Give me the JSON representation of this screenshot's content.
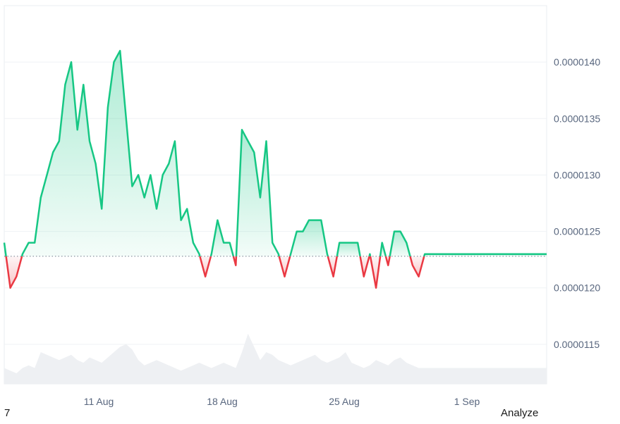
{
  "chart_data": {
    "type": "area",
    "x_ticks": [
      "11 Aug",
      "18 Aug",
      "25 Aug",
      "1 Sep"
    ],
    "y_ticks": [
      "0.0000140",
      "0.0000135",
      "0.0000130",
      "0.0000125",
      "0.0000120",
      "0.0000115"
    ],
    "ylim": [
      1.115e-05,
      1.45e-05
    ],
    "baseline": 1.228e-05,
    "grid": true,
    "colors": {
      "above": "#16c784",
      "below": "#ea3943",
      "above_fill": "#16c784",
      "below_fill": "#ea3943",
      "volume": "#eef0f3",
      "baseline": "#707a8a"
    },
    "x": [
      0,
      0.5,
      1,
      1.5,
      2,
      2.5,
      3,
      3.5,
      4,
      4.5,
      5,
      5.5,
      6,
      6.5,
      7,
      7.5,
      8,
      8.5,
      9,
      9.5,
      10,
      10.5,
      11,
      11.5,
      12,
      12.5,
      13,
      13.5,
      14,
      14.5,
      15,
      15.5,
      16,
      16.5,
      17,
      17.5,
      18,
      18.5,
      19,
      19.5,
      20,
      20.5,
      21,
      21.5,
      22,
      22.5,
      23,
      23.5,
      24,
      24.5,
      25,
      25.5,
      26,
      26.5,
      27,
      27.5,
      28,
      28.5,
      29,
      29.5,
      30,
      30.5,
      31,
      31.5,
      32,
      32.5,
      33,
      33.5,
      34,
      34.5,
      35,
      35.5,
      36,
      36.5,
      37,
      37.5,
      38,
      38.5,
      39,
      39.5,
      40,
      40.5,
      41,
      41.5,
      42,
      42.5,
      43,
      43.5,
      44,
      44.5
    ],
    "price": [
      1.24e-05,
      1.2e-05,
      1.21e-05,
      1.23e-05,
      1.24e-05,
      1.24e-05,
      1.28e-05,
      1.3e-05,
      1.32e-05,
      1.33e-05,
      1.38e-05,
      1.4e-05,
      1.34e-05,
      1.38e-05,
      1.33e-05,
      1.31e-05,
      1.27e-05,
      1.36e-05,
      1.4e-05,
      1.41e-05,
      1.35e-05,
      1.29e-05,
      1.3e-05,
      1.28e-05,
      1.3e-05,
      1.27e-05,
      1.3e-05,
      1.31e-05,
      1.33e-05,
      1.26e-05,
      1.27e-05,
      1.24e-05,
      1.23e-05,
      1.21e-05,
      1.23e-05,
      1.26e-05,
      1.24e-05,
      1.24e-05,
      1.22e-05,
      1.34e-05,
      1.33e-05,
      1.32e-05,
      1.28e-05,
      1.33e-05,
      1.24e-05,
      1.23e-05,
      1.21e-05,
      1.23e-05,
      1.25e-05,
      1.25e-05,
      1.26e-05,
      1.26e-05,
      1.26e-05,
      1.23e-05,
      1.21e-05,
      1.24e-05,
      1.24e-05,
      1.24e-05,
      1.24e-05,
      1.21e-05,
      1.23e-05,
      1.2e-05,
      1.24e-05,
      1.22e-05,
      1.25e-05,
      1.25e-05,
      1.24e-05,
      1.22e-05,
      1.21e-05,
      1.23e-05,
      1.23e-05,
      1.23e-05,
      1.23e-05,
      1.23e-05,
      1.23e-05,
      1.23e-05,
      1.23e-05,
      1.23e-05,
      1.23e-05,
      1.23e-05,
      1.23e-05,
      1.23e-05,
      1.23e-05,
      1.23e-05,
      1.23e-05,
      1.23e-05,
      1.23e-05,
      1.23e-05,
      1.23e-05,
      1.23e-05
    ],
    "volume": [
      0.3,
      0.25,
      0.2,
      0.3,
      0.35,
      0.3,
      0.6,
      0.55,
      0.5,
      0.45,
      0.5,
      0.55,
      0.45,
      0.4,
      0.5,
      0.45,
      0.4,
      0.5,
      0.6,
      0.7,
      0.75,
      0.65,
      0.45,
      0.35,
      0.4,
      0.45,
      0.4,
      0.35,
      0.3,
      0.25,
      0.3,
      0.35,
      0.4,
      0.35,
      0.3,
      0.35,
      0.4,
      0.35,
      0.3,
      0.6,
      0.95,
      0.7,
      0.45,
      0.6,
      0.55,
      0.45,
      0.4,
      0.35,
      0.4,
      0.45,
      0.5,
      0.55,
      0.45,
      0.4,
      0.45,
      0.5,
      0.6,
      0.4,
      0.35,
      0.3,
      0.35,
      0.45,
      0.4,
      0.35,
      0.45,
      0.5,
      0.4,
      0.35,
      0.3,
      0.3,
      0.3,
      0.3,
      0.3,
      0.3,
      0.3,
      0.3,
      0.3,
      0.3,
      0.3,
      0.3,
      0.3,
      0.3,
      0.3,
      0.3,
      0.3,
      0.3,
      0.3,
      0.3,
      0.3,
      0.3
    ]
  },
  "footer": {
    "left_label": "7",
    "right_label": "Analyze"
  }
}
